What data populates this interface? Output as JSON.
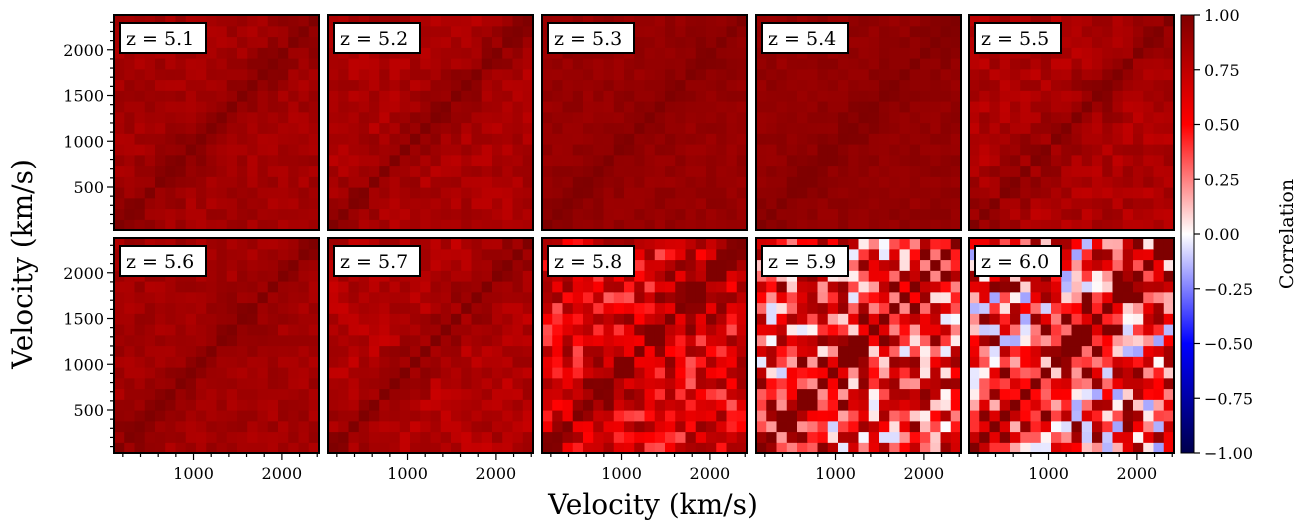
{
  "chart_data": {
    "type": "heatmap",
    "panels": [
      {
        "label": "z = 5.1",
        "mean": 0.86,
        "noise": 0.06
      },
      {
        "label": "z = 5.2",
        "mean": 0.83,
        "noise": 0.07
      },
      {
        "label": "z = 5.3",
        "mean": 0.91,
        "noise": 0.04
      },
      {
        "label": "z = 5.4",
        "mean": 0.92,
        "noise": 0.04
      },
      {
        "label": "z = 5.5",
        "mean": 0.82,
        "noise": 0.08
      },
      {
        "label": "z = 5.6",
        "mean": 0.86,
        "noise": 0.06
      },
      {
        "label": "z = 5.7",
        "mean": 0.8,
        "noise": 0.09
      },
      {
        "label": "z = 5.8",
        "mean": 0.62,
        "noise": 0.3
      },
      {
        "label": "z = 5.9",
        "mean": 0.42,
        "noise": 0.55
      },
      {
        "label": "z = 6.0",
        "mean": 0.4,
        "noise": 0.6
      }
    ],
    "grid_size": 20,
    "xlabel": "Velocity (km/s)",
    "ylabel": "Velocity (km/s)",
    "xlim": [
      100,
      2420
    ],
    "ylim": [
      30,
      2380
    ],
    "xticks": [
      1000,
      2000
    ],
    "yticks": [
      500,
      1000,
      1500,
      2000
    ],
    "colorbar": {
      "label": "Correlation",
      "range": [
        -1.0,
        1.0
      ],
      "ticks": [
        "1.00",
        "0.75",
        "0.50",
        "0.25",
        "0.00",
        "−0.25",
        "−0.50",
        "−0.75",
        "−1.00"
      ],
      "colormap": "seismic",
      "colors": {
        "low": "#00004c",
        "mid": "#ffffff",
        "high": "#7f0000"
      }
    },
    "layout": {
      "rows": 2,
      "cols": 5
    }
  }
}
